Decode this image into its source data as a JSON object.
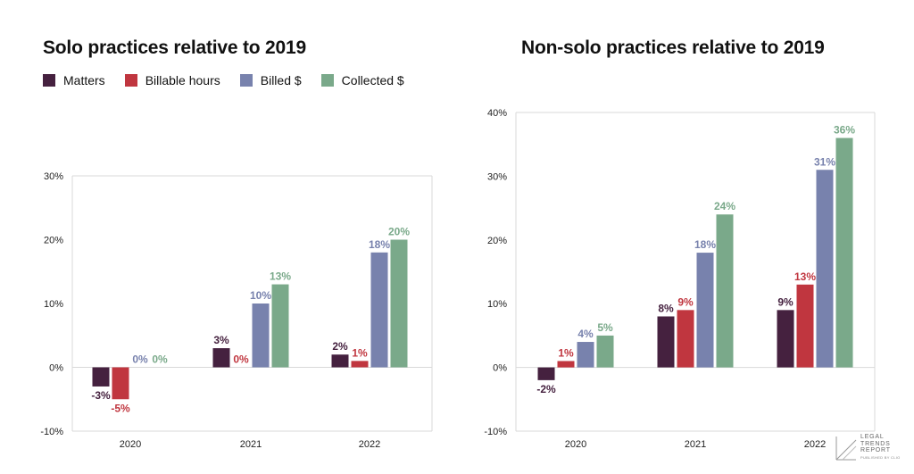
{
  "colors": {
    "Matters": "#45213f",
    "Billable hours": "#c0363f",
    "Billed $": "#7882ad",
    "Collected $": "#7aa98a"
  },
  "legend": [
    "Matters",
    "Billable hours",
    "Billed $",
    "Collected $"
  ],
  "logo": {
    "line1": "LEGAL",
    "line2": "TRENDS",
    "line3": "REPORT",
    "sub": "PUBLISHED BY CLIO"
  },
  "chart_data": [
    {
      "type": "bar",
      "title": "Solo practices relative to 2019",
      "categories": [
        "2020",
        "2021",
        "2022"
      ],
      "ylim": [
        -10,
        30
      ],
      "yticks": [
        -10,
        0,
        10,
        20,
        30
      ],
      "grid": false,
      "legend_position": "top-left",
      "series": [
        {
          "name": "Matters",
          "values": [
            -3,
            3,
            2
          ]
        },
        {
          "name": "Billable hours",
          "values": [
            -5,
            0,
            1
          ]
        },
        {
          "name": "Billed $",
          "values": [
            0,
            10,
            18
          ]
        },
        {
          "name": "Collected $",
          "values": [
            0,
            13,
            20
          ]
        }
      ]
    },
    {
      "type": "bar",
      "title": "Non-solo practices relative to 2019",
      "categories": [
        "2020",
        "2021",
        "2022"
      ],
      "ylim": [
        -10,
        40
      ],
      "yticks": [
        -10,
        0,
        10,
        20,
        30,
        40
      ],
      "grid": false,
      "series": [
        {
          "name": "Matters",
          "values": [
            -2,
            8,
            9
          ]
        },
        {
          "name": "Billable hours",
          "values": [
            1,
            9,
            13
          ]
        },
        {
          "name": "Billed $",
          "values": [
            4,
            18,
            31
          ]
        },
        {
          "name": "Collected $",
          "values": [
            5,
            24,
            36
          ]
        }
      ]
    }
  ]
}
